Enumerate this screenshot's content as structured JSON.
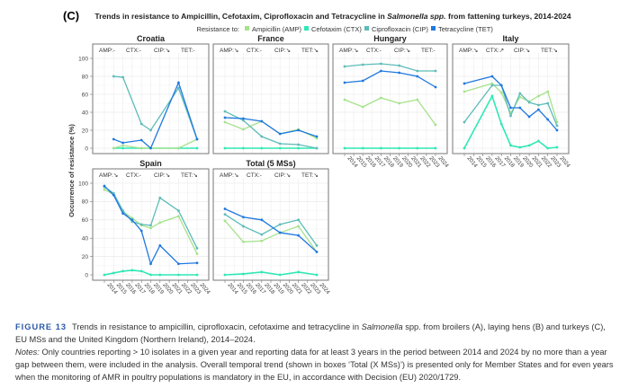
{
  "chart_data": {
    "type": "line",
    "panel_label": "(C)",
    "title_pre": "Trends in resistance to Ampicillin, Cefotaxim, Ciprofloxacin and Tetracycline in ",
    "title_italic": "Salmonella spp.",
    "title_post": " from fattening turkeys, 2014-2024",
    "legend_title": "Resistance to:",
    "legend_position": "top",
    "ylabel": "Occurrence of resistance (%)",
    "ylim": [
      0,
      100
    ],
    "yticks": [
      0,
      20,
      40,
      60,
      80,
      100
    ],
    "xlim": [
      2014,
      2024
    ],
    "xticks": [
      "2014",
      "2015",
      "2016",
      "2017",
      "2018",
      "2019",
      "2020",
      "2021",
      "2022",
      "2023",
      "2024"
    ],
    "series_meta": [
      {
        "key": "AMP",
        "name": "Ampicillin (AMP)",
        "color": "#a6e28c"
      },
      {
        "key": "CTX",
        "name": "Cefotaxim (CTX)",
        "color": "#2fe8b4"
      },
      {
        "key": "CIP",
        "name": "Ciprofloxacin (CIP)",
        "color": "#5cbcb8"
      },
      {
        "key": "TET",
        "name": "Tetracycline (TET)",
        "color": "#1f78e0"
      }
    ],
    "panels": [
      {
        "name": "Croatia",
        "trends": [
          "AMP:-",
          "CTX:-",
          "CIP:↘",
          "TET:-"
        ],
        "x": [
          2015,
          2016,
          2018,
          2019,
          2022,
          2024
        ],
        "series": {
          "AMP": [
            0,
            3,
            0,
            0,
            0,
            10
          ],
          "CTX": [
            0,
            0,
            0,
            0,
            0,
            0
          ],
          "CIP": [
            80,
            79,
            27,
            20,
            67,
            10
          ],
          "TET": [
            10,
            6,
            9,
            0,
            73,
            10
          ]
        }
      },
      {
        "name": "France",
        "trends": [
          "AMP:↘",
          "CTX:-",
          "CIP:↘",
          "TET:↘"
        ],
        "x": [
          2014,
          2016,
          2018,
          2020,
          2022,
          2024
        ],
        "series": {
          "AMP": [
            29,
            21,
            30,
            16,
            21,
            11
          ],
          "CTX": [
            0,
            0,
            0,
            0,
            0,
            0
          ],
          "CIP": [
            41,
            31,
            13,
            5,
            4,
            0
          ],
          "TET": [
            34,
            33,
            30,
            16,
            20,
            13
          ]
        }
      },
      {
        "name": "Hungary",
        "trends": [
          "AMP:↘",
          "CTX:-",
          "CIP:↘",
          "TET:-"
        ],
        "x": [
          2014,
          2016,
          2018,
          2020,
          2022,
          2024
        ],
        "series": {
          "AMP": [
            54,
            46,
            56,
            50,
            54,
            26
          ],
          "CTX": [
            0,
            0,
            0,
            0,
            0,
            0
          ],
          "CIP": [
            91,
            93,
            94,
            92,
            86,
            86
          ],
          "TET": [
            73,
            75,
            86,
            84,
            80,
            68
          ]
        }
      },
      {
        "name": "Italy",
        "trends": [
          "AMP:↘",
          "CTX:↗",
          "CIP:↘",
          "TET:↘"
        ],
        "x": [
          2014,
          2017,
          2018,
          2019,
          2020,
          2021,
          2022,
          2023,
          2024
        ],
        "series": {
          "AMP": [
            63,
            72,
            62,
            39,
            57,
            52,
            58,
            63,
            29
          ],
          "CTX": [
            0,
            58,
            27,
            3,
            1,
            3,
            8,
            0,
            1
          ],
          "CIP": [
            29,
            70,
            70,
            36,
            61,
            51,
            48,
            50,
            25
          ],
          "TET": [
            72,
            80,
            70,
            45,
            45,
            35,
            43,
            32,
            20
          ]
        }
      },
      {
        "name": "Spain",
        "trends": [
          "AMP:↘",
          "CTX:-",
          "CIP:↘",
          "TET:↘"
        ],
        "x": [
          2014,
          2015,
          2016,
          2017,
          2018,
          2019,
          2020,
          2022,
          2024
        ],
        "series": {
          "AMP": [
            93,
            88,
            69,
            62,
            54,
            51,
            57,
            64,
            23
          ],
          "CTX": [
            0,
            2,
            4,
            5,
            4,
            0,
            0,
            0,
            0
          ],
          "CIP": [
            96,
            89,
            70,
            58,
            55,
            54,
            84,
            70,
            29
          ],
          "TET": [
            97,
            87,
            67,
            60,
            48,
            12,
            32,
            12,
            13
          ]
        }
      },
      {
        "name": "Total (5 MSs)",
        "trends": [
          "AMP:↘",
          "CTX:-",
          "CIP:↘",
          "TET:↘"
        ],
        "x": [
          2014,
          2016,
          2018,
          2020,
          2022,
          2024
        ],
        "series": {
          "AMP": [
            59,
            36,
            37,
            46,
            53,
            25
          ],
          "CTX": [
            0,
            1,
            3,
            0,
            3,
            0
          ],
          "CIP": [
            66,
            53,
            44,
            55,
            60,
            32
          ],
          "TET": [
            72,
            63,
            60,
            46,
            43,
            25
          ]
        }
      }
    ]
  },
  "caption": {
    "figure_label": "FIGURE 13",
    "text_pre": "Trends in resistance to ampicillin, ciprofloxacin, cefotaxime and tetracycline in ",
    "text_italic": "Salmonella",
    "text_post": " spp. from broilers (A), laying hens (B) and turkeys (C), EU MSs and the United Kingdom (Northern Ireland), 2014–2024.",
    "notes_label": "Notes:",
    "notes_text": " Only countries reporting > 10 isolates in a given year and reporting data for at least 3 years in the period between 2014 and 2024 by no more than a year gap between them, were included in the analysis. Overall temporal trend (shown in boxes ‘Total (X MSs)’) is presented only for Member States and for even years when the monitoring of AMR in poultry populations is mandatory in the EU, in accordance with Decision (EU) 2020/1729."
  }
}
